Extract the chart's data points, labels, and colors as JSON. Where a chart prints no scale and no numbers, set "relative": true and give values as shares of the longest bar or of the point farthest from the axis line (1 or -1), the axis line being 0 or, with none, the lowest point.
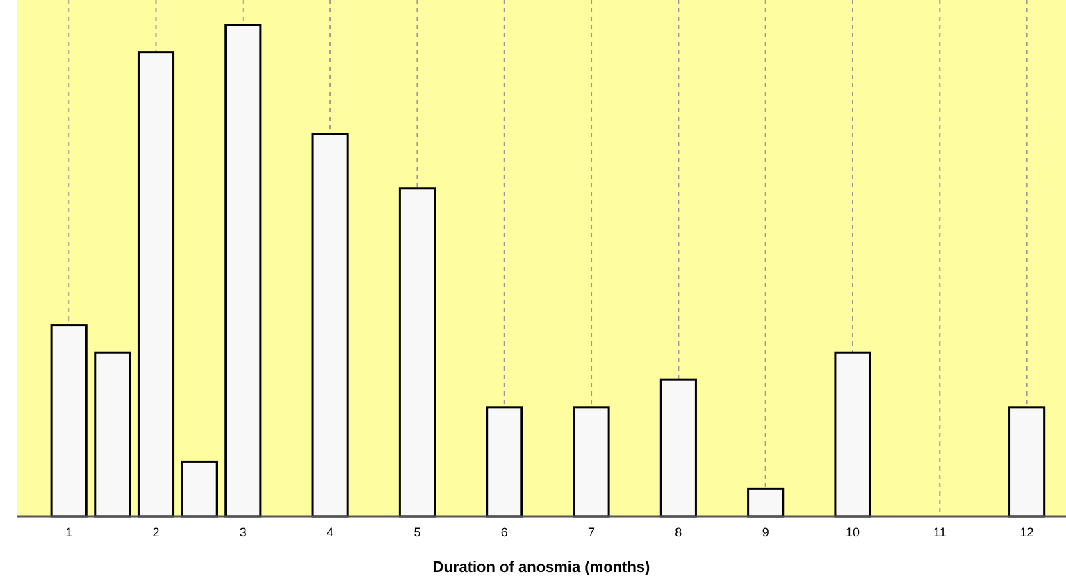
{
  "chart_data": {
    "type": "bar",
    "relative": true,
    "xlabel": "Duration of anosmia (months)",
    "x": [
      1,
      1.5,
      2,
      2.5,
      3,
      4,
      5,
      6,
      7,
      8,
      9,
      10,
      12
    ],
    "values": [
      0.389,
      0.333,
      0.944,
      0.111,
      1,
      0.778,
      0.667,
      0.222,
      0.222,
      0.278,
      0.056,
      0.333,
      0.222
    ],
    "color": "#f8f8f8",
    "xlim": [
      0.4,
      12.45
    ],
    "xticks": [
      1,
      2,
      3,
      4,
      5,
      6,
      7,
      8,
      9,
      10,
      11,
      12
    ],
    "grid": "x"
  }
}
